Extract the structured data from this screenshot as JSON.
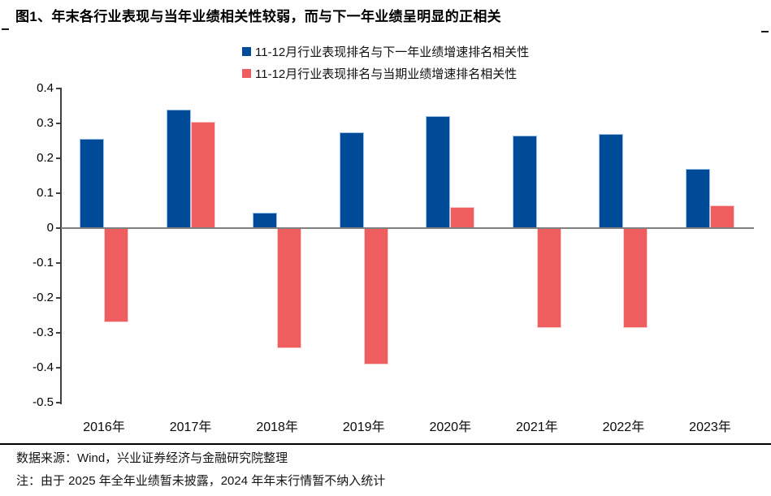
{
  "title": "图1、年末各行业表现与当年业绩相关性较弱，而与下一年业绩呈明显的正相关",
  "colors": {
    "series_blue": "#004B97",
    "series_red": "#EF5E5E",
    "zero_line": "#7F7F7F",
    "axis": "#404040"
  },
  "legend": {
    "items": [
      {
        "label": "11-12月行业表现排名与下一年业绩增速排名相关性",
        "color": "#004B97"
      },
      {
        "label": "11-12月行业表现排名与当期业绩增速排名相关性",
        "color": "#EF5E5E"
      }
    ]
  },
  "chart_data": {
    "type": "bar",
    "categories": [
      "2016年",
      "2017年",
      "2018年",
      "2019年",
      "2020年",
      "2021年",
      "2022年",
      "2023年"
    ],
    "series": [
      {
        "name": "11-12月行业表现排名与下一年业绩增速排名相关性",
        "color": "#004B97",
        "values": [
          0.255,
          0.34,
          0.045,
          0.275,
          0.32,
          0.265,
          0.27,
          0.17
        ]
      },
      {
        "name": "11-12月行业表现排名与当期业绩增速排名相关性",
        "color": "#EF5E5E",
        "values": [
          -0.27,
          0.305,
          -0.345,
          -0.39,
          0.06,
          -0.285,
          -0.285,
          0.065
        ]
      }
    ],
    "ylim": [
      -0.5,
      0.4
    ],
    "ytick_step": 0.1,
    "ytick_labels": [
      "0.4",
      "0.3",
      "0.2",
      "0.1",
      "0",
      "-0.1",
      "-0.2",
      "-0.3",
      "-0.4",
      "-0.5"
    ],
    "grid": false,
    "legend_position": "top"
  },
  "footer": {
    "source": "数据来源：Wind，兴业证券经济与金融研究院整理",
    "note": "注：由于 2025 年全年业绩暂未披露，2024 年年末行情暂不纳入统计"
  }
}
